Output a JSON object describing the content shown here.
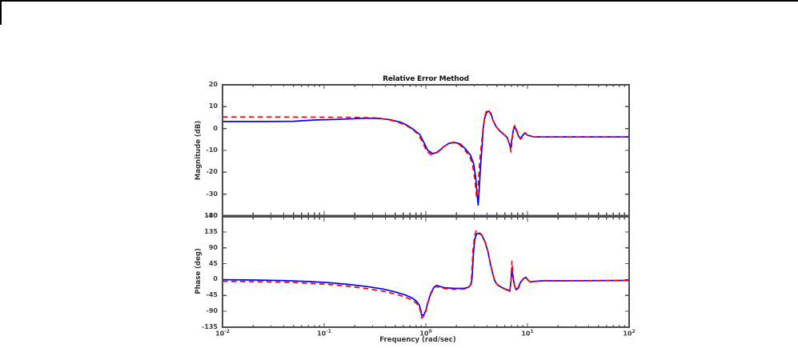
{
  "window": {
    "border_color": "#000000"
  },
  "figure": {
    "background": "#ffffff",
    "axis_color": "#4d4d4d",
    "tick_label_color": "#3d3d3d"
  },
  "chart_data": [
    {
      "type": "line",
      "title": "Relative Error Method",
      "ylabel": "Magnitude (dB)",
      "xscale": "log",
      "xlim": [
        0.01,
        100
      ],
      "ylim": [
        -40,
        20
      ],
      "yticks": [
        20,
        10,
        0,
        -10,
        -20,
        -30,
        -40
      ],
      "grid": false,
      "legend": "none",
      "series": [
        {
          "name": "blue-solid-curve",
          "color": "#0000ff",
          "line_style": "solid",
          "points_logx_db": [
            [
              -2,
              3.2
            ],
            [
              -1.6,
              3.2
            ],
            [
              -1.3,
              3.3
            ],
            [
              -1.1,
              3.9
            ],
            [
              -0.85,
              4.2
            ],
            [
              -0.6,
              4.7
            ],
            [
              -0.45,
              4.6
            ],
            [
              -0.35,
              4.0
            ],
            [
              -0.25,
              2.9
            ],
            [
              -0.18,
              1.4
            ],
            [
              -0.12,
              -0.5
            ],
            [
              -0.06,
              -2.7
            ],
            [
              -0.02,
              -6.3
            ],
            [
              0.02,
              -10.0
            ],
            [
              0.07,
              -11.5
            ],
            [
              0.12,
              -10.7
            ],
            [
              0.18,
              -8.2
            ],
            [
              0.23,
              -6.7
            ],
            [
              0.28,
              -6.3
            ],
            [
              0.34,
              -7.1
            ],
            [
              0.39,
              -9.3
            ],
            [
              0.44,
              -12.2
            ],
            [
              0.47,
              -16
            ],
            [
              0.49,
              -22
            ],
            [
              0.505,
              -30
            ],
            [
              0.515,
              -35
            ],
            [
              0.525,
              -28
            ],
            [
              0.54,
              -16
            ],
            [
              0.555,
              -7
            ],
            [
              0.565,
              0.3
            ],
            [
              0.578,
              4.6
            ],
            [
              0.6,
              7.5
            ],
            [
              0.622,
              7.9
            ],
            [
              0.64,
              6.9
            ],
            [
              0.66,
              3.9
            ],
            [
              0.69,
              1.0
            ],
            [
              0.73,
              -1.2
            ],
            [
              0.77,
              -2.7
            ],
            [
              0.8,
              -4.1
            ],
            [
              0.822,
              -7.0
            ],
            [
              0.835,
              -8.9
            ],
            [
              0.848,
              -4.5
            ],
            [
              0.862,
              -0.5
            ],
            [
              0.874,
              1.0
            ],
            [
              0.89,
              -0.8
            ],
            [
              0.912,
              -3.4
            ],
            [
              0.932,
              -4.5
            ],
            [
              0.955,
              -3.0
            ],
            [
              0.976,
              -1.9
            ],
            [
              1.0,
              -3.0
            ],
            [
              1.06,
              -3.8
            ],
            [
              1.4,
              -3.8
            ],
            [
              2,
              -3.8
            ]
          ]
        },
        {
          "name": "red-dashed-curve",
          "color": "#ff0000",
          "line_style": "dashed",
          "points_logx_db": [
            [
              -2,
              5.3
            ],
            [
              -1.5,
              5.3
            ],
            [
              -1.0,
              5.2
            ],
            [
              -0.7,
              5.1
            ],
            [
              -0.5,
              4.9
            ],
            [
              -0.38,
              4.2
            ],
            [
              -0.28,
              3.0
            ],
            [
              -0.2,
              1.6
            ],
            [
              -0.13,
              -0.4
            ],
            [
              -0.07,
              -2.9
            ],
            [
              -0.03,
              -6.5
            ],
            [
              0.01,
              -10.5
            ],
            [
              0.055,
              -12.0
            ],
            [
              0.1,
              -11.2
            ],
            [
              0.16,
              -8.8
            ],
            [
              0.22,
              -7.0
            ],
            [
              0.27,
              -6.5
            ],
            [
              0.33,
              -7.3
            ],
            [
              0.38,
              -9.6
            ],
            [
              0.43,
              -12.6
            ],
            [
              0.46,
              -16.5
            ],
            [
              0.48,
              -22.5
            ],
            [
              0.5,
              -31.5
            ],
            [
              0.515,
              -26
            ],
            [
              0.53,
              -15
            ],
            [
              0.55,
              -6
            ],
            [
              0.565,
              1
            ],
            [
              0.58,
              5.5
            ],
            [
              0.602,
              8.8
            ],
            [
              0.618,
              8.4
            ],
            [
              0.64,
              6.2
            ],
            [
              0.665,
              3.2
            ],
            [
              0.695,
              0.6
            ],
            [
              0.735,
              -1.6
            ],
            [
              0.775,
              -3.0
            ],
            [
              0.806,
              -4.6
            ],
            [
              0.825,
              -8.0
            ],
            [
              0.838,
              -10.7
            ],
            [
              0.852,
              -3.8
            ],
            [
              0.865,
              0.5
            ],
            [
              0.877,
              1.5
            ],
            [
              0.892,
              -0.5
            ],
            [
              0.915,
              -3.8
            ],
            [
              0.935,
              -4.8
            ],
            [
              0.96,
              -3.2
            ],
            [
              0.98,
              -2.1
            ],
            [
              1.005,
              -3.2
            ],
            [
              1.07,
              -3.9
            ],
            [
              1.4,
              -3.9
            ],
            [
              2,
              -3.9
            ]
          ]
        }
      ]
    },
    {
      "type": "line",
      "title": "",
      "ylabel": "Phase (deg)",
      "xlabel": "Frequency (rad/sec)",
      "xscale": "log",
      "xlim": [
        0.01,
        100
      ],
      "ylim": [
        -135,
        180
      ],
      "yticks": [
        180,
        135,
        90,
        45,
        0,
        -45,
        -90,
        -135
      ],
      "xticks": [
        {
          "base": "10",
          "exp": "-2"
        },
        {
          "base": "10",
          "exp": "-1"
        },
        {
          "base": "10",
          "exp": "0"
        },
        {
          "base": "10",
          "exp": "1"
        },
        {
          "base": "10",
          "exp": "2"
        }
      ],
      "grid": false,
      "legend": "none",
      "series": [
        {
          "name": "blue-solid-curve",
          "color": "#0000ff",
          "line_style": "solid",
          "points_logx_deg": [
            [
              -2,
              -0.5
            ],
            [
              -1.7,
              -1.3
            ],
            [
              -1.4,
              -2.8
            ],
            [
              -1.15,
              -5.5
            ],
            [
              -0.95,
              -9
            ],
            [
              -0.75,
              -14
            ],
            [
              -0.55,
              -21
            ],
            [
              -0.42,
              -27
            ],
            [
              -0.3,
              -35
            ],
            [
              -0.2,
              -44
            ],
            [
              -0.13,
              -53
            ],
            [
              -0.09,
              -62
            ],
            [
              -0.065,
              -72
            ],
            [
              -0.05,
              -85
            ],
            [
              -0.04,
              -102
            ],
            [
              -0.02,
              -100
            ],
            [
              0.0,
              -88
            ],
            [
              0.02,
              -65
            ],
            [
              0.05,
              -38
            ],
            [
              0.08,
              -22
            ],
            [
              0.105,
              -16.5
            ],
            [
              0.13,
              -19
            ],
            [
              0.18,
              -23
            ],
            [
              0.28,
              -25
            ],
            [
              0.38,
              -25
            ],
            [
              0.42,
              -22
            ],
            [
              0.445,
              -14
            ],
            [
              0.455,
              3
            ],
            [
              0.468,
              70
            ],
            [
              0.482,
              115
            ],
            [
              0.5,
              129
            ],
            [
              0.52,
              131
            ],
            [
              0.55,
              126
            ],
            [
              0.58,
              108
            ],
            [
              0.61,
              80
            ],
            [
              0.635,
              45
            ],
            [
              0.66,
              15
            ],
            [
              0.677,
              -3
            ],
            [
              0.7,
              -13
            ],
            [
              0.74,
              -21.5
            ],
            [
              0.78,
              -26.5
            ],
            [
              0.81,
              -30
            ],
            [
              0.825,
              -33
            ],
            [
              0.838,
              -5
            ],
            [
              0.846,
              33
            ],
            [
              0.858,
              5
            ],
            [
              0.875,
              -20
            ],
            [
              0.89,
              -29
            ],
            [
              0.91,
              -22
            ],
            [
              0.935,
              -6
            ],
            [
              0.96,
              2.5
            ],
            [
              0.984,
              6.5
            ],
            [
              1.005,
              -2
            ],
            [
              1.03,
              -7
            ],
            [
              1.07,
              -5
            ],
            [
              1.15,
              -3.5
            ],
            [
              1.6,
              -3
            ],
            [
              2,
              -2.5
            ]
          ]
        },
        {
          "name": "red-dashed-curve",
          "color": "#ff0000",
          "line_style": "dashed",
          "points_logx_deg": [
            [
              -2,
              -5
            ],
            [
              -1.7,
              -5.8
            ],
            [
              -1.4,
              -7.5
            ],
            [
              -1.15,
              -10.5
            ],
            [
              -0.95,
              -14
            ],
            [
              -0.75,
              -19.5
            ],
            [
              -0.55,
              -27
            ],
            [
              -0.42,
              -33
            ],
            [
              -0.3,
              -41
            ],
            [
              -0.2,
              -50
            ],
            [
              -0.13,
              -59
            ],
            [
              -0.09,
              -68
            ],
            [
              -0.065,
              -78
            ],
            [
              -0.05,
              -92
            ],
            [
              -0.042,
              -109
            ],
            [
              -0.02,
              -104
            ],
            [
              0.0,
              -92
            ],
            [
              0.02,
              -68
            ],
            [
              0.05,
              -41
            ],
            [
              0.078,
              -25
            ],
            [
              0.1,
              -19
            ],
            [
              0.13,
              -22
            ],
            [
              0.18,
              -25.5
            ],
            [
              0.28,
              -27.5
            ],
            [
              0.38,
              -27
            ],
            [
              0.415,
              -23.5
            ],
            [
              0.44,
              -15
            ],
            [
              0.45,
              8
            ],
            [
              0.463,
              80
            ],
            [
              0.478,
              122
            ],
            [
              0.496,
              138
            ],
            [
              0.52,
              135
            ],
            [
              0.55,
              127
            ],
            [
              0.58,
              109
            ],
            [
              0.61,
              81
            ],
            [
              0.635,
              46
            ],
            [
              0.66,
              16
            ],
            [
              0.677,
              -2
            ],
            [
              0.7,
              -14
            ],
            [
              0.74,
              -22.5
            ],
            [
              0.78,
              -27.5
            ],
            [
              0.81,
              -31
            ],
            [
              0.826,
              -35
            ],
            [
              0.839,
              0
            ],
            [
              0.847,
              52
            ],
            [
              0.86,
              8
            ],
            [
              0.877,
              -22
            ],
            [
              0.892,
              -31
            ],
            [
              0.912,
              -24
            ],
            [
              0.937,
              -7.5
            ],
            [
              0.962,
              3
            ],
            [
              0.985,
              7
            ],
            [
              1.007,
              -2.5
            ],
            [
              1.032,
              -8
            ],
            [
              1.075,
              -5.5
            ],
            [
              1.16,
              -4
            ],
            [
              1.6,
              -3.5
            ],
            [
              2,
              -3
            ]
          ]
        }
      ]
    }
  ]
}
